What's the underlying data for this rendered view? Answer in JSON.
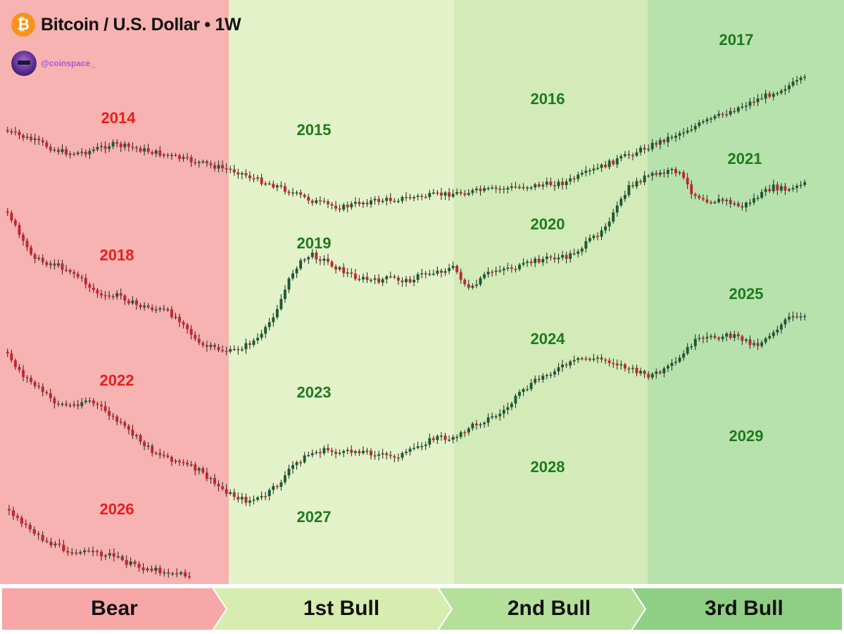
{
  "header": {
    "title": "Bitcoin / U.S. Dollar • 1W",
    "logo_glyph": "₿",
    "handle": "@coinspace_"
  },
  "phases": [
    {
      "label": "Bear",
      "color": "#f7a7a7",
      "band_color": "#f6b3b1"
    },
    {
      "label": "1st Bull",
      "color": "#d7ecaf",
      "band_color": "#e3f2c9"
    },
    {
      "label": "2nd Bull",
      "color": "#b5e09a",
      "band_color": "#d2ebb8"
    },
    {
      "label": "3rd Bull",
      "color": "#8fcf83",
      "band_color": "#b8e2ad"
    }
  ],
  "colors": {
    "bear_year": "#e81e1e",
    "bull_year": "#1e7a1e",
    "candle_up": "#1a5a34",
    "candle_down": "#c8232c",
    "wick": "#222222"
  },
  "chart_data": {
    "type": "candlestick",
    "title": "Bitcoin / U.S. Dollar • 1W",
    "note": "Four-year cycle rows; each row's price path is drawn across the Bear, 1st Bull, 2nd Bull and 3rd Bull phases.",
    "rows": [
      {
        "years": [
          {
            "year": "2014",
            "phase": "Bear"
          },
          {
            "year": "2015",
            "phase": "1st Bull"
          },
          {
            "year": "2016",
            "phase": "2nd Bull"
          },
          {
            "year": "2017",
            "phase": "3rd Bull"
          }
        ],
        "path": [
          [
            0,
            0
          ],
          [
            2,
            6
          ],
          [
            4,
            12
          ],
          [
            6,
            20
          ],
          [
            8,
            24
          ],
          [
            10,
            22
          ],
          [
            13,
            14
          ],
          [
            16,
            18
          ],
          [
            19,
            24
          ],
          [
            22,
            30
          ],
          [
            25,
            36
          ],
          [
            27,
            40
          ],
          [
            29,
            44
          ],
          [
            31,
            52
          ],
          [
            34,
            60
          ],
          [
            36,
            68
          ],
          [
            38,
            75
          ],
          [
            40,
            80
          ],
          [
            42,
            83
          ],
          [
            44,
            78
          ],
          [
            46,
            75
          ],
          [
            48,
            78
          ],
          [
            50,
            82
          ],
          [
            52,
            80
          ],
          [
            54,
            78
          ],
          [
            56,
            76
          ],
          [
            58,
            79
          ],
          [
            60,
            82
          ],
          [
            62,
            80
          ],
          [
            64,
            76
          ],
          [
            66,
            68
          ],
          [
            68,
            60
          ],
          [
            70,
            58
          ],
          [
            72,
            57
          ],
          [
            74,
            52
          ],
          [
            76,
            48
          ],
          [
            78,
            46
          ],
          [
            80,
            44
          ],
          [
            82,
            40
          ],
          [
            84,
            36
          ],
          [
            86,
            34
          ],
          [
            88,
            30
          ],
          [
            90,
            26
          ],
          [
            92,
            20
          ],
          [
            94,
            14
          ],
          [
            96,
            11
          ],
          [
            98,
            4
          ],
          [
            100,
            0
          ]
        ]
      },
      {
        "years": [
          {
            "year": "2018",
            "phase": "Bear"
          },
          {
            "year": "2019",
            "phase": "1st Bull"
          },
          {
            "year": "2020",
            "phase": "2nd Bull"
          },
          {
            "year": "2021",
            "phase": "3rd Bull"
          }
        ],
        "path": [
          [
            0,
            0
          ],
          [
            2,
            20
          ],
          [
            4,
            30
          ],
          [
            6,
            32
          ],
          [
            8,
            36
          ],
          [
            10,
            44
          ],
          [
            12,
            52
          ],
          [
            14,
            50
          ],
          [
            16,
            56
          ],
          [
            18,
            58
          ],
          [
            20,
            60
          ],
          [
            22,
            66
          ],
          [
            24,
            80
          ],
          [
            26,
            82
          ],
          [
            28,
            84
          ],
          [
            30,
            80
          ],
          [
            32,
            74
          ],
          [
            34,
            56
          ],
          [
            36,
            34
          ],
          [
            38,
            26
          ],
          [
            40,
            30
          ],
          [
            42,
            36
          ],
          [
            44,
            40
          ],
          [
            46,
            42
          ],
          [
            48,
            40
          ],
          [
            50,
            42
          ],
          [
            52,
            38
          ],
          [
            54,
            36
          ],
          [
            56,
            34
          ],
          [
            58,
            48
          ],
          [
            60,
            38
          ],
          [
            62,
            34
          ],
          [
            64,
            34
          ],
          [
            66,
            30
          ],
          [
            68,
            28
          ],
          [
            70,
            28
          ],
          [
            72,
            22
          ],
          [
            74,
            14
          ],
          [
            76,
            2
          ],
          [
            78,
            -14
          ],
          [
            80,
            -20
          ],
          [
            82,
            -22
          ],
          [
            84,
            -24
          ],
          [
            86,
            -10
          ],
          [
            88,
            -6
          ],
          [
            90,
            -6
          ],
          [
            92,
            -2
          ],
          [
            94,
            -8
          ],
          [
            96,
            -14
          ],
          [
            98,
            -12
          ],
          [
            100,
            -16
          ]
        ]
      },
      {
        "years": [
          {
            "year": "2022",
            "phase": "Bear"
          },
          {
            "year": "2023",
            "phase": "1st Bull"
          },
          {
            "year": "2024",
            "phase": "2nd Bull"
          },
          {
            "year": "2025",
            "phase": "3rd Bull"
          }
        ],
        "path": [
          [
            0,
            0
          ],
          [
            2,
            12
          ],
          [
            4,
            20
          ],
          [
            6,
            28
          ],
          [
            8,
            30
          ],
          [
            10,
            26
          ],
          [
            12,
            32
          ],
          [
            14,
            40
          ],
          [
            16,
            48
          ],
          [
            18,
            56
          ],
          [
            20,
            60
          ],
          [
            22,
            64
          ],
          [
            24,
            68
          ],
          [
            26,
            76
          ],
          [
            28,
            82
          ],
          [
            30,
            86
          ],
          [
            32,
            84
          ],
          [
            34,
            76
          ],
          [
            36,
            64
          ],
          [
            38,
            58
          ],
          [
            40,
            56
          ],
          [
            42,
            58
          ],
          [
            44,
            56
          ],
          [
            46,
            58
          ],
          [
            48,
            60
          ],
          [
            50,
            58
          ],
          [
            52,
            52
          ],
          [
            54,
            48
          ],
          [
            56,
            50
          ],
          [
            58,
            42
          ],
          [
            60,
            38
          ],
          [
            62,
            34
          ],
          [
            64,
            24
          ],
          [
            66,
            16
          ],
          [
            68,
            10
          ],
          [
            70,
            6
          ],
          [
            72,
            2
          ],
          [
            74,
            2
          ],
          [
            76,
            4
          ],
          [
            78,
            8
          ],
          [
            80,
            12
          ],
          [
            82,
            10
          ],
          [
            84,
            4
          ],
          [
            86,
            -8
          ],
          [
            88,
            -10
          ],
          [
            90,
            -12
          ],
          [
            92,
            -10
          ],
          [
            94,
            -6
          ],
          [
            96,
            -14
          ],
          [
            98,
            -22
          ],
          [
            100,
            -22
          ]
        ]
      },
      {
        "years": [
          {
            "year": "2026",
            "phase": "Bear"
          },
          {
            "year": "2027",
            "phase": "1st Bull"
          },
          {
            "year": "2028",
            "phase": "2nd Bull"
          },
          {
            "year": "2029",
            "phase": "3rd Bull"
          }
        ],
        "path": [
          [
            0,
            0
          ],
          [
            10,
            20
          ],
          [
            20,
            40
          ],
          [
            30,
            50
          ],
          [
            40,
            54
          ],
          [
            48,
            56
          ],
          [
            54,
            56
          ],
          [
            60,
            62
          ],
          [
            70,
            72
          ],
          [
            80,
            76
          ],
          [
            90,
            80
          ],
          [
            100,
            84
          ]
        ]
      }
    ]
  }
}
